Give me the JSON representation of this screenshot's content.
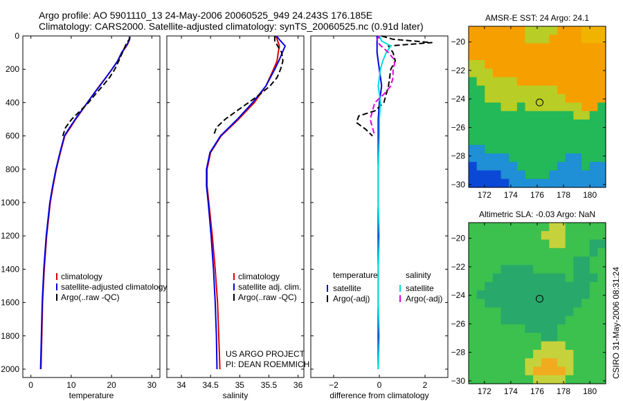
{
  "header": {
    "line1": "Argo profile: AO 5901110_13 24-May-2006 20060525_949 24.243S 176.185E",
    "line2": "Climatology: CARS2000. Satellite-adjusted climatology: synTS_20060525.nc (0.91d later)"
  },
  "side_text": "CSIRO 31-May-2006 08:31:24",
  "credit": {
    "line1": "US ARGO PROJECT",
    "line2": "PI: DEAN ROEMMICH"
  },
  "colors": {
    "climatology": "#dd0000",
    "satellite": "#0000dd",
    "argo": "#000000",
    "sal_satellite": "#00dddd",
    "sal_argo": "#dd00dd"
  },
  "chart_data": [
    {
      "id": "temperature",
      "type": "line",
      "xlabel": "temperature",
      "ylabel": "",
      "xlim": [
        -2,
        32
      ],
      "ylim": [
        2050,
        0
      ],
      "y_reversed": true,
      "xticks": [
        0,
        10,
        20,
        30
      ],
      "yticks": [
        0,
        200,
        400,
        600,
        800,
        1000,
        1200,
        1400,
        1600,
        1800,
        2000
      ],
      "legend": {
        "placement": "lower-right",
        "entries": [
          "climatology",
          "satellite-adjusted climatology",
          "Argo(..raw -QC)"
        ]
      },
      "series": [
        {
          "name": "climatology",
          "style": "solid",
          "color": "#dd0000",
          "y": [
            5,
            20,
            50,
            100,
            150,
            200,
            250,
            300,
            350,
            400,
            450,
            500,
            550,
            600,
            700,
            800,
            900,
            1000,
            1200,
            1400,
            1600,
            1800,
            2000
          ],
          "x": [
            24.5,
            24.5,
            24.0,
            22.6,
            21.6,
            20.1,
            18.6,
            17.0,
            15.5,
            14.0,
            12.6,
            11.1,
            9.8,
            8.4,
            7.3,
            6.3,
            5.5,
            4.8,
            3.9,
            3.3,
            2.9,
            2.7,
            2.5
          ]
        },
        {
          "name": "satellite-adjusted climatology",
          "style": "solid",
          "color": "#0000dd",
          "y": [
            5,
            20,
            50,
            100,
            150,
            200,
            250,
            300,
            350,
            400,
            450,
            500,
            550,
            600,
            700,
            800,
            900,
            1000,
            1200,
            1400,
            1600,
            1800,
            2000
          ],
          "x": [
            24.4,
            24.5,
            23.9,
            22.5,
            21.5,
            20.1,
            18.6,
            17.1,
            15.5,
            14.0,
            12.5,
            11.0,
            9.6,
            8.3,
            7.2,
            6.2,
            5.4,
            4.7,
            3.8,
            3.2,
            2.8,
            2.6,
            2.4
          ]
        },
        {
          "name": "Argo(..raw -QC)",
          "style": "dashed",
          "color": "#000000",
          "y": [
            5,
            20,
            50,
            100,
            150,
            200,
            250,
            300,
            350,
            400,
            450,
            500,
            550,
            600
          ],
          "x": [
            24.6,
            24.4,
            23.6,
            22.7,
            21.8,
            20.8,
            19.5,
            17.8,
            16.0,
            14.3,
            12.2,
            10.1,
            8.6,
            7.9
          ]
        }
      ]
    },
    {
      "id": "salinity",
      "type": "line",
      "xlabel": "salinity",
      "ylabel": "",
      "xlim": [
        33.75,
        36.1
      ],
      "ylim": [
        2050,
        0
      ],
      "y_reversed": true,
      "xticks": [
        34,
        34.5,
        35,
        35.5,
        36
      ],
      "yticks": [
        0,
        200,
        400,
        600,
        800,
        1000,
        1200,
        1400,
        1600,
        1800,
        2000
      ],
      "legend": {
        "placement": "lower-right",
        "entries": [
          "climatology",
          "satellite adj. clim.",
          "Argo(..raw -QC)"
        ]
      },
      "series": [
        {
          "name": "climatology",
          "style": "solid",
          "color": "#dd0000",
          "y": [
            0,
            30,
            60,
            100,
            150,
            200,
            300,
            400,
            500,
            600,
            700,
            800,
            900,
            1000,
            1200,
            1400,
            1600,
            1800,
            2000
          ],
          "x": [
            35.62,
            35.65,
            35.68,
            35.66,
            35.64,
            35.58,
            35.45,
            35.25,
            34.98,
            34.68,
            34.5,
            34.44,
            34.44,
            34.47,
            34.53,
            34.58,
            34.62,
            34.64,
            34.66
          ]
        },
        {
          "name": "satellite adj. clim.",
          "style": "solid",
          "color": "#0000dd",
          "y": [
            0,
            30,
            60,
            100,
            150,
            200,
            300,
            400,
            500,
            600,
            700,
            800,
            900,
            1000,
            1200,
            1400,
            1600,
            1800,
            2000
          ],
          "x": [
            35.63,
            35.7,
            35.78,
            35.73,
            35.67,
            35.6,
            35.45,
            35.22,
            34.96,
            34.67,
            34.49,
            34.43,
            34.43,
            34.46,
            34.51,
            34.55,
            34.58,
            34.6,
            34.61
          ]
        },
        {
          "name": "Argo(..raw -QC)",
          "style": "dashed",
          "color": "#000000",
          "y": [
            0,
            30,
            60,
            100,
            150,
            200,
            250,
            300,
            350,
            400,
            450,
            500,
            550,
            600
          ],
          "x": [
            35.6,
            35.6,
            35.65,
            35.72,
            35.74,
            35.7,
            35.64,
            35.52,
            35.35,
            35.15,
            34.95,
            34.75,
            34.6,
            34.55
          ]
        }
      ]
    },
    {
      "id": "difference",
      "type": "line",
      "xlabel": "difference from climatology",
      "ylabel": "",
      "xlim": [
        -3,
        3
      ],
      "ylim": [
        2050,
        0
      ],
      "y_reversed": true,
      "xticks": [
        -2,
        0,
        2
      ],
      "yticks": [
        0,
        200,
        400,
        600,
        800,
        1000,
        1200,
        1400,
        1600,
        1800,
        2000
      ],
      "legend": {
        "placement": "lower-center",
        "columns": [
          {
            "heading": "temperature",
            "entries": [
              "satellite",
              "Argo(-adj)"
            ]
          },
          {
            "heading": "salinity",
            "entries": [
              "satellite",
              "Argo(-adj)"
            ]
          }
        ]
      },
      "series": [
        {
          "name": "temperature satellite",
          "style": "solid",
          "color": "#0000dd",
          "y": [
            0,
            50,
            100,
            200,
            300,
            400,
            500,
            600,
            800,
            1000,
            1200,
            1400,
            1600,
            1800,
            2000
          ],
          "x": [
            -0.1,
            -0.1,
            -0.1,
            0.0,
            0.1,
            0.0,
            -0.05,
            -0.05,
            -0.05,
            -0.05,
            -0.05,
            -0.05,
            -0.05,
            -0.05,
            -0.05
          ]
        },
        {
          "name": "temperature Argo(-adj)",
          "style": "dashed",
          "color": "#000000",
          "y": [
            0,
            20,
            40,
            60,
            100,
            150,
            200,
            300,
            400,
            450,
            480,
            520,
            560,
            600
          ],
          "x": [
            0.1,
            0.6,
            2.3,
            0.4,
            0.6,
            0.7,
            0.5,
            0.4,
            0.2,
            -0.2,
            -0.9,
            -1.0,
            -0.6,
            -0.3
          ]
        },
        {
          "name": "salinity satellite",
          "style": "solid",
          "color": "#00dddd",
          "y": [
            0,
            30,
            60,
            100,
            150,
            200,
            300,
            400,
            500,
            600,
            800,
            1000,
            1200,
            1400,
            1600,
            1800,
            2000
          ],
          "x": [
            0.0,
            0.1,
            0.5,
            0.3,
            0.15,
            0.05,
            -0.05,
            0.05,
            0.0,
            0.0,
            -0.05,
            -0.05,
            0.0,
            -0.05,
            -0.05,
            0.0,
            -0.05
          ]
        },
        {
          "name": "salinity Argo(-adj)",
          "style": "dashed",
          "color": "#dd00dd",
          "y": [
            0,
            20,
            50,
            100,
            150,
            200,
            250,
            300,
            350,
            400,
            450,
            500,
            550,
            600
          ],
          "x": [
            0.0,
            -0.1,
            0.0,
            0.4,
            0.7,
            0.6,
            0.6,
            0.5,
            0.2,
            -0.2,
            -0.3,
            -0.4,
            -0.3,
            -0.2
          ]
        }
      ]
    },
    {
      "id": "sst-map",
      "type": "heatmap",
      "title": "AMSR-E SST: 24 Argo: 24.1",
      "xlim": [
        170.8,
        181.2
      ],
      "ylim": [
        -30.2,
        -18.9
      ],
      "xticks": [
        172,
        174,
        176,
        178,
        180
      ],
      "yticks": [
        -20,
        -22,
        -24,
        -26,
        -28,
        -30
      ],
      "marker": {
        "lon": 176.185,
        "lat": -24.243
      },
      "rows_north_to_south": [
        "aaaaaaabbbbaaazzz",
        "aaaaaaabbbaaaazzz",
        "aaaaaaaaaaaaaaaaa",
        "aaaaaaaaaaaaaaaaa",
        "bbaaaaaaaaaaaaaaa",
        "bbbaaaaaaaaaaaaaa",
        "cbbbbbaaaaaaaaaaa",
        "ccbbbbbbbbbaaaaaa",
        "ccbbbbbbbbbbaaaaa",
        "ccccbbcbbbbbbbaac",
        "cccccccccccccbbcc",
        "ccccccccccccccccc",
        "ccccccccccccccccc",
        "ccccccccccccccccc",
        "ddccccccccccccccc",
        "dddddcccccccddccc",
        "edddddcccccdddcdd",
        "eeeedddcccddddddd",
        "eeeeedddddddddddd"
      ],
      "palette": {
        "z": "#f0b400",
        "a": "#f5a000",
        "b": "#b8ce26",
        "c": "#23b858",
        "d": "#1f8fd6",
        "e": "#0c48d6"
      }
    },
    {
      "id": "sla-map",
      "type": "heatmap",
      "title": "Altimetric SLA: -0.03 Argo: NaN",
      "xlim": [
        170.8,
        181.2
      ],
      "ylim": [
        -30.2,
        -18.9
      ],
      "xticks": [
        172,
        174,
        176,
        178,
        180
      ],
      "yticks": [
        -20,
        -22,
        -24,
        -26,
        -28,
        -30
      ],
      "marker": {
        "lon": 176.185,
        "lat": -24.243
      },
      "rows_north_to_south": [
        "ccccccccccaaccccc",
        "cccccccccaaaccccc",
        "ccccccccccaacccbb",
        "cccccccccccccccbc",
        "cccccccccccccbbcc",
        "ccccbbbbcccccbbcc",
        "cccbbbbbbbbbcbbbc",
        "ccbbbbbbbbbbbbbcc",
        "cbbbbbbbbbbbbbbcc",
        "ccbbbbbbbbbbbbccc",
        "ccccbbbbbbbbbcccc",
        "ccccbbbbbbbbccccc",
        "cccccccbbbbcccccc",
        "cccccccccbbcccccc",
        "cccccccccaaaccccc",
        "ccccccccaaaaacccc",
        "cccccccaaeeaacccc",
        "cccccccaeeeeacccc",
        "ccccccccaaaaccccc"
      ],
      "palette": {
        "a": "#c6d23c",
        "b": "#28a86a",
        "c": "#3cc04e",
        "e": "#f0ac1e"
      }
    }
  ]
}
